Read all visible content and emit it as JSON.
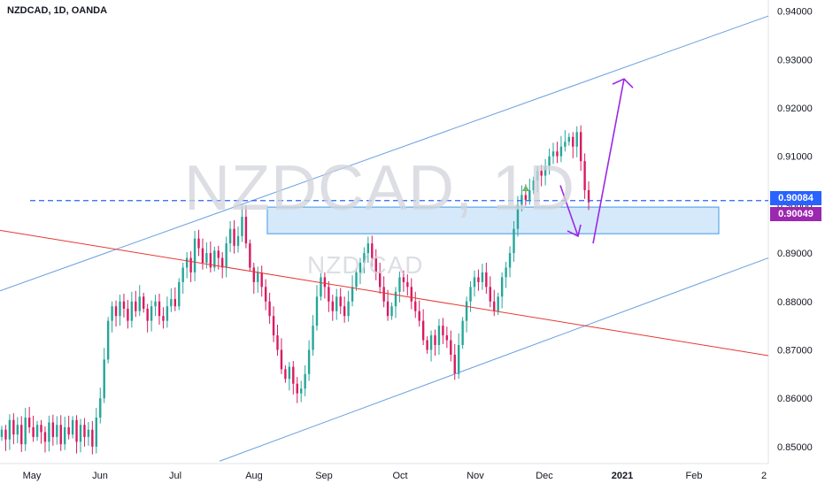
{
  "title": "NZDCAD, 1D, OANDA",
  "watermark": {
    "main": "NZDCAD, 1D",
    "sub": "NZD/CAD"
  },
  "price_labels": [
    {
      "value": "0.90084",
      "color": "#2962ff"
    },
    {
      "value": "0.90049",
      "color": "#9c27b0"
    }
  ],
  "colors": {
    "up": "#26a69a",
    "down": "#d81b60",
    "channel": "#6a9ee0",
    "support": "#e53935",
    "arrow": "#9c27e6",
    "zone_fill": "#d6e9fb",
    "zone_edge": "#5aa8e8"
  },
  "chart_data": {
    "type": "candlestick",
    "symbol": "NZDCAD",
    "interval": "1D",
    "source": "OANDA",
    "y_ticks": [
      "0.85000",
      "0.86000",
      "0.87000",
      "0.88000",
      "0.89000",
      "0.90000",
      "0.91000",
      "0.92000",
      "0.93000",
      "0.94000"
    ],
    "x_ticks": [
      "May",
      "Jun",
      "Jul",
      "Aug",
      "Sep",
      "Oct",
      "Nov",
      "Dec",
      "2021",
      "Feb",
      "2"
    ],
    "ylim": [
      0.8465,
      0.9423
    ],
    "closes": [
      0.8535,
      0.8515,
      0.8555,
      0.8525,
      0.8545,
      0.8505,
      0.856,
      0.854,
      0.852,
      0.8545,
      0.853,
      0.851,
      0.855,
      0.852,
      0.8545,
      0.8505,
      0.854,
      0.8525,
      0.8555,
      0.851,
      0.8545,
      0.852,
      0.8535,
      0.85,
      0.856,
      0.86,
      0.868,
      0.876,
      0.879,
      0.877,
      0.88,
      0.8785,
      0.876,
      0.88,
      0.878,
      0.881,
      0.8785,
      0.876,
      0.879,
      0.88,
      0.877,
      0.876,
      0.879,
      0.8805,
      0.879,
      0.884,
      0.887,
      0.889,
      0.886,
      0.893,
      0.891,
      0.888,
      0.89,
      0.887,
      0.8905,
      0.889,
      0.887,
      0.892,
      0.895,
      0.8915,
      0.8935,
      0.8975,
      0.892,
      0.887,
      0.884,
      0.886,
      0.883,
      0.88,
      0.877,
      0.873,
      0.87,
      0.866,
      0.864,
      0.8665,
      0.863,
      0.861,
      0.862,
      0.865,
      0.87,
      0.875,
      0.881,
      0.885,
      0.883,
      0.88,
      0.878,
      0.881,
      0.879,
      0.877,
      0.88,
      0.883,
      0.886,
      0.888,
      0.89,
      0.892,
      0.889,
      0.886,
      0.883,
      0.88,
      0.877,
      0.879,
      0.882,
      0.885,
      0.884,
      0.883,
      0.88,
      0.878,
      0.876,
      0.872,
      0.87,
      0.873,
      0.871,
      0.875,
      0.873,
      0.872,
      0.869,
      0.865,
      0.871,
      0.876,
      0.88,
      0.883,
      0.885,
      0.884,
      0.886,
      0.883,
      0.88,
      0.878,
      0.881,
      0.885,
      0.887,
      0.89,
      0.895,
      0.9,
      0.902,
      0.901,
      0.903,
      0.905,
      0.907,
      0.906,
      0.908,
      0.91,
      0.911,
      0.91,
      0.912,
      0.913,
      0.914,
      0.912,
      0.915,
      0.909,
      0.903,
      0.9005
    ],
    "annotations": {
      "current_price": 0.90084,
      "target_price": 0.90049,
      "resistance_zone": [
        0.894,
        0.8995
      ],
      "channel": "ascending",
      "support_line": "descending"
    }
  }
}
